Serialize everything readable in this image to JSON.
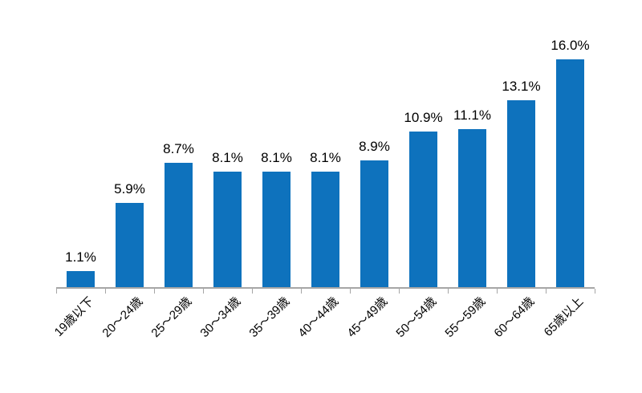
{
  "chart_data": {
    "type": "bar",
    "title": "",
    "xlabel": "",
    "ylabel": "",
    "categories": [
      "19歳以下",
      "20〜24歳",
      "25〜29歳",
      "30〜34歳",
      "35〜39歳",
      "40〜44歳",
      "45〜49歳",
      "50〜54歳",
      "55〜59歳",
      "60〜64歳",
      "65歳以上"
    ],
    "values": [
      1.1,
      5.9,
      8.7,
      8.1,
      8.1,
      8.1,
      8.9,
      10.9,
      11.1,
      13.1,
      16.0
    ],
    "value_labels": [
      "1.1%",
      "5.9%",
      "8.7%",
      "8.1%",
      "8.1%",
      "8.1%",
      "8.9%",
      "10.9%",
      "11.1%",
      "13.1%",
      "16.0%"
    ],
    "ylim": [
      0,
      18
    ],
    "grid": false,
    "legend": false,
    "y_axis_visible": false,
    "x_tick_rotation": 45,
    "colors": {
      "bar": "#0e72bd",
      "axis": "#a6a6a6",
      "text": "#000000",
      "background": "#ffffff"
    }
  }
}
